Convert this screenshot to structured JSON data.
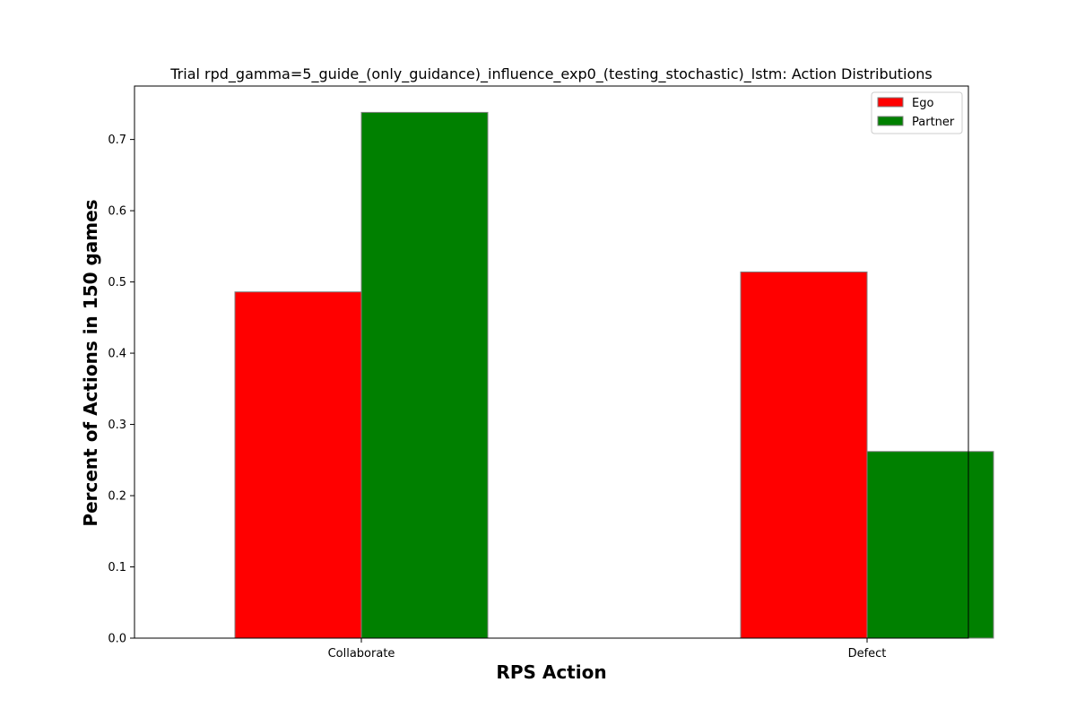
{
  "chart_data": {
    "type": "bar",
    "title": "Trial rpd_gamma=5_guide_(only_guidance)_influence_exp0_(testing_stochastic)_lstm: Action Distributions",
    "xlabel": "RPS Action",
    "ylabel": "Percent of Actions in 150 games",
    "categories": [
      "Collaborate",
      "Defect"
    ],
    "series": [
      {
        "name": "Ego",
        "values": [
          0.486,
          0.514
        ],
        "color": "#ff0000"
      },
      {
        "name": "Partner",
        "values": [
          0.738,
          0.262
        ],
        "color": "#008000"
      }
    ],
    "ylim": [
      0,
      0.775
    ],
    "yticks": [
      0.0,
      0.1,
      0.2,
      0.3,
      0.4,
      0.5,
      0.6,
      0.7
    ],
    "ytick_labels": [
      "0.0",
      "0.1",
      "0.2",
      "0.3",
      "0.4",
      "0.5",
      "0.6",
      "0.7"
    ],
    "grid": false,
    "legend_position": "top-right",
    "bar_edge_color": "#808080"
  }
}
